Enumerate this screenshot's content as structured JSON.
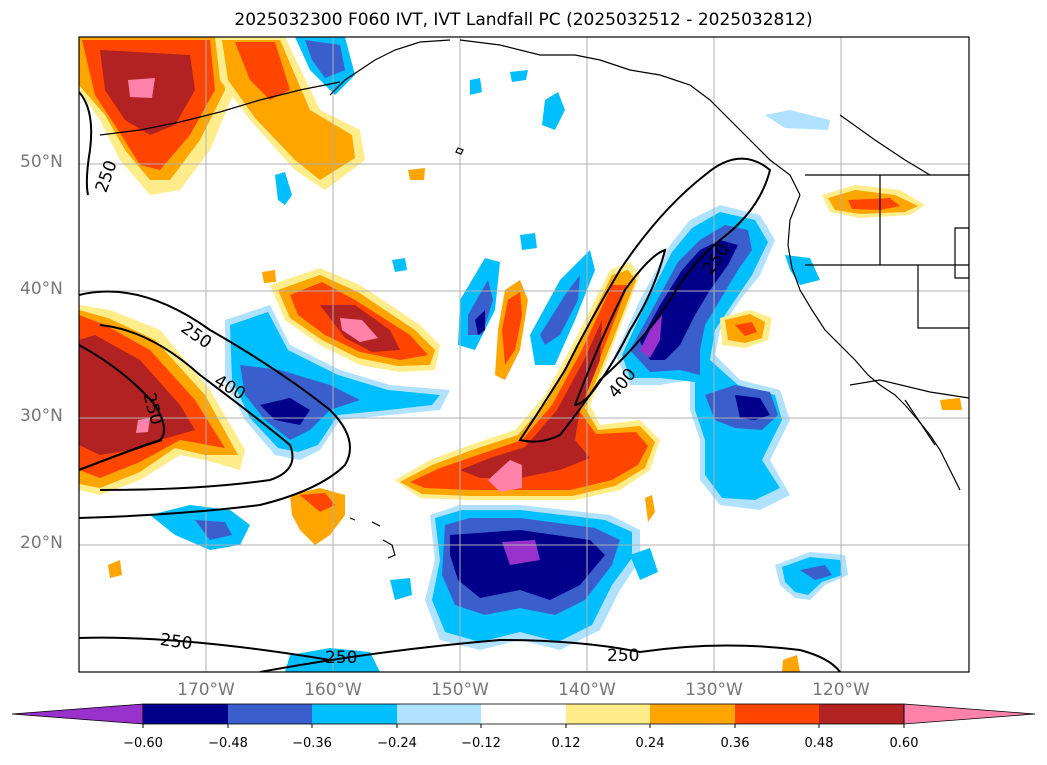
{
  "title": "2025032300 F060 IVT, IVT Landfall PC (2025032512 - 2025032812)",
  "lat_labels": [
    "50°N",
    "40°N",
    "30°N",
    "20°N"
  ],
  "lon_labels": [
    "170°W",
    "160°W",
    "150°W",
    "140°W",
    "130°W",
    "120°W"
  ],
  "contour_labels": [
    "250",
    "250",
    "250",
    "400",
    "250",
    "400",
    "250",
    "250",
    "250"
  ],
  "colorbar": {
    "ticks": [
      "−0.60",
      "−0.48",
      "−0.36",
      "−0.24",
      "−0.12",
      "0.12",
      "0.24",
      "0.36",
      "0.48",
      "0.60"
    ],
    "colors": [
      "#9932cc",
      "#00008b",
      "#3a5fcd",
      "#00bfff",
      "#b0e2ff",
      "#ffffff",
      "#ffec8b",
      "#ffa500",
      "#ff4500",
      "#b22222",
      "#ff82ab"
    ]
  },
  "map": {
    "region": "North Pacific",
    "lon_range": [
      -180,
      -110
    ],
    "lat_range": [
      10,
      60
    ],
    "contour_levels": [
      250,
      400
    ]
  }
}
